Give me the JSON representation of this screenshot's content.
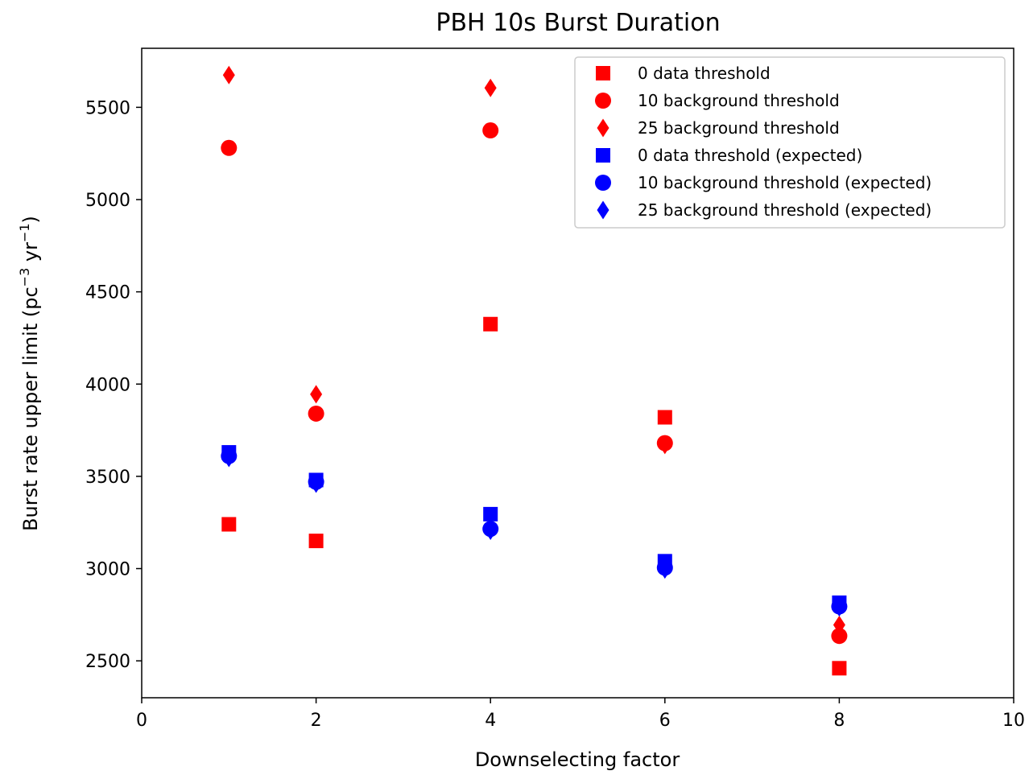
{
  "chart_data": {
    "type": "scatter",
    "title": "PBH 10s Burst Duration",
    "xlabel": "Downselecting factor",
    "ylabel": "Burst rate upper limit (pc",
    "ylabel_sup1": "−3",
    "ylabel_mid": " yr",
    "ylabel_sup2": "−1",
    "ylabel_end": ")",
    "xlim": [
      0,
      10
    ],
    "ylim": [
      2300,
      5820
    ],
    "xticks": [
      "0",
      "2",
      "4",
      "6",
      "8",
      "10"
    ],
    "yticks": [
      "2500",
      "3000",
      "3500",
      "4000",
      "4500",
      "5000",
      "5500"
    ],
    "grid": false,
    "legend_position": "top-right",
    "x": [
      1,
      2,
      4,
      6,
      8
    ],
    "series": [
      {
        "name": "0 data threshold",
        "marker": "square",
        "color": "#ff0000",
        "values": [
          3240,
          3150,
          4325,
          3820,
          2460
        ]
      },
      {
        "name": "10 background threshold",
        "marker": "circle",
        "color": "#ff0000",
        "values": [
          5280,
          3840,
          5375,
          3680,
          2635
        ]
      },
      {
        "name": "25 background threshold",
        "marker": "diamond",
        "color": "#ff0000",
        "values": [
          5675,
          3945,
          5605,
          3670,
          2695
        ]
      },
      {
        "name": "0 data threshold (expected)",
        "marker": "square",
        "color": "#0000ff",
        "values": [
          3630,
          3480,
          3295,
          3040,
          2815
        ]
      },
      {
        "name": "10 background threshold (expected)",
        "marker": "circle",
        "color": "#0000ff",
        "values": [
          3610,
          3470,
          3215,
          3005,
          2795
        ]
      },
      {
        "name": "25 background threshold (expected)",
        "marker": "diamond",
        "color": "#0000ff",
        "values": [
          3600,
          3460,
          3205,
          2995,
          2790
        ]
      }
    ]
  }
}
